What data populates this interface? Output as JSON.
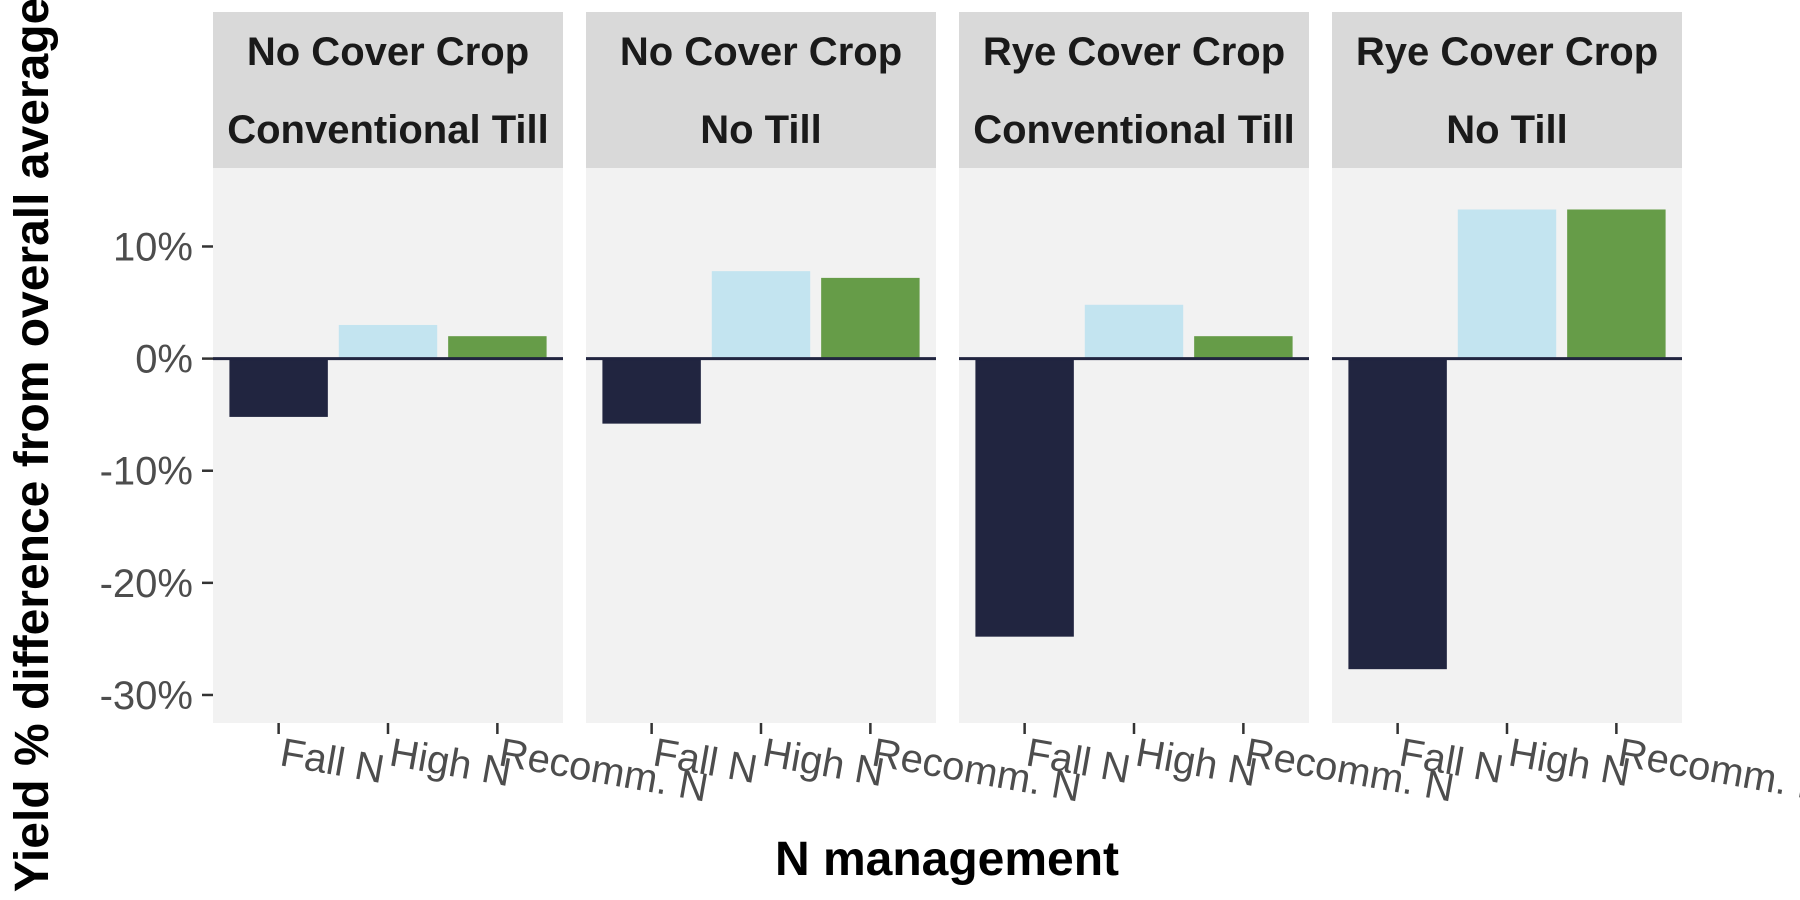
{
  "chart_data": {
    "type": "bar",
    "xlabel": "N management",
    "ylabel": "Yield % difference from overall average",
    "categories": [
      "Fall N",
      "High N",
      "Recomm. N"
    ],
    "category_colors": {
      "Fall N": "#212540",
      "High N": "#c3e4f0",
      "Recomm. N": "#669c48"
    },
    "ylim": [
      -32.5,
      17
    ],
    "yticks": [
      {
        "value": 10,
        "label": "10%"
      },
      {
        "value": 0,
        "label": "0%"
      },
      {
        "value": -10,
        "label": "-10%"
      },
      {
        "value": -20,
        "label": "-20%"
      },
      {
        "value": -30,
        "label": "-30%"
      }
    ],
    "panel_background": "#f2f2f2",
    "strip_background": "#d9d9d9",
    "zero_line_color": "#212540",
    "grid": false,
    "facets": [
      {
        "strip": [
          "No Cover Crop",
          "Conventional Till"
        ],
        "values": [
          -5.2,
          3.0,
          2.0
        ]
      },
      {
        "strip": [
          "No Cover Crop",
          "No Till"
        ],
        "values": [
          -5.8,
          7.8,
          7.2
        ]
      },
      {
        "strip": [
          "Rye Cover Crop",
          "Conventional Till"
        ],
        "values": [
          -24.8,
          4.8,
          2.0
        ]
      },
      {
        "strip": [
          "Rye Cover Crop",
          "No Till"
        ],
        "values": [
          -27.7,
          13.3,
          13.3
        ]
      }
    ]
  }
}
